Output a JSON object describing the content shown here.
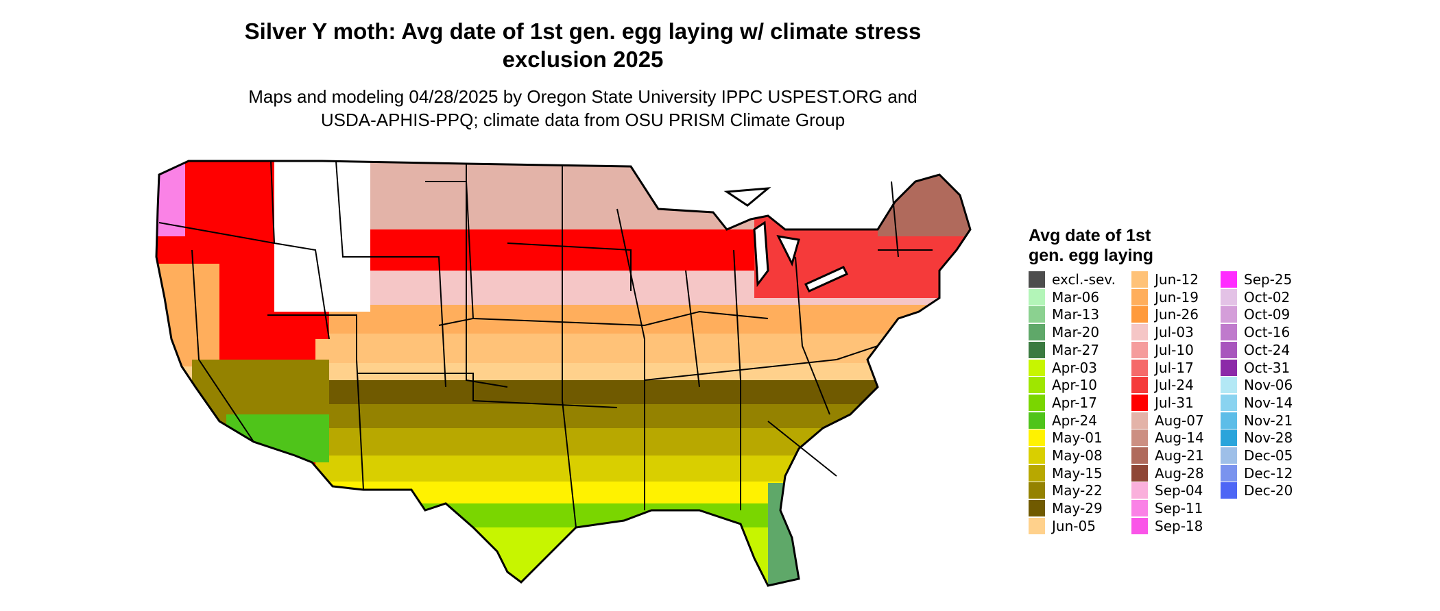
{
  "title_line1": "Silver Y moth: Avg date of 1st gen. egg laying w/ climate stress",
  "title_line2": "exclusion 2025",
  "subtitle_line1": "Maps and modeling 04/28/2025 by Oregon State University IPPC USPEST.ORG and",
  "subtitle_line2": "USDA-APHIS-PPQ; climate data from OSU PRISM Climate Group",
  "legend": {
    "title_line1": "Avg date of 1st",
    "title_line2": "gen. egg laying",
    "items": [
      {
        "label": "excl.-sev.",
        "color": "#4d4d4d"
      },
      {
        "label": "Mar-06",
        "color": "#b3f5b8"
      },
      {
        "label": "Mar-13",
        "color": "#8bd190"
      },
      {
        "label": "Mar-20",
        "color": "#5fa869"
      },
      {
        "label": "Mar-27",
        "color": "#3a7a40"
      },
      {
        "label": "Apr-03",
        "color": "#c7f500"
      },
      {
        "label": "Apr-10",
        "color": "#9fe600"
      },
      {
        "label": "Apr-17",
        "color": "#7ad600"
      },
      {
        "label": "Apr-24",
        "color": "#4fc41a"
      },
      {
        "label": "May-01",
        "color": "#fff200"
      },
      {
        "label": "May-08",
        "color": "#d9cf00"
      },
      {
        "label": "May-15",
        "color": "#b8a800"
      },
      {
        "label": "May-22",
        "color": "#948200"
      },
      {
        "label": "May-29",
        "color": "#705a00"
      },
      {
        "label": "Jun-05",
        "color": "#ffd18c"
      },
      {
        "label": "Jun-12",
        "color": "#ffc278"
      },
      {
        "label": "Jun-19",
        "color": "#ffae5c"
      },
      {
        "label": "Jun-26",
        "color": "#ff9a3c"
      },
      {
        "label": "Jul-03",
        "color": "#f5c6c6"
      },
      {
        "label": "Jul-10",
        "color": "#f59c9c"
      },
      {
        "label": "Jul-17",
        "color": "#f56a6a"
      },
      {
        "label": "Jul-24",
        "color": "#f53a3a"
      },
      {
        "label": "Jul-31",
        "color": "#ff0000"
      },
      {
        "label": "Aug-07",
        "color": "#e3b3a8"
      },
      {
        "label": "Aug-14",
        "color": "#cc8f82"
      },
      {
        "label": "Aug-21",
        "color": "#b06a5c"
      },
      {
        "label": "Aug-28",
        "color": "#8f4636"
      },
      {
        "label": "Sep-04",
        "color": "#fab0dc"
      },
      {
        "label": "Sep-11",
        "color": "#fa82e6"
      },
      {
        "label": "Sep-18",
        "color": "#fa55e8"
      },
      {
        "label": "Sep-25",
        "color": "#ff2bff"
      },
      {
        "label": "Oct-02",
        "color": "#e3c2e6"
      },
      {
        "label": "Oct-09",
        "color": "#d49ed9"
      },
      {
        "label": "Oct-16",
        "color": "#bf7acc"
      },
      {
        "label": "Oct-24",
        "color": "#a855bd"
      },
      {
        "label": "Oct-31",
        "color": "#8c2aa8"
      },
      {
        "label": "Nov-06",
        "color": "#b3e8f5"
      },
      {
        "label": "Nov-14",
        "color": "#8ad3f0"
      },
      {
        "label": "Nov-21",
        "color": "#5cbde8"
      },
      {
        "label": "Nov-28",
        "color": "#2aa4db"
      },
      {
        "label": "Dec-05",
        "color": "#9ebfe8"
      },
      {
        "label": "Dec-12",
        "color": "#7a93ee"
      },
      {
        "label": "Dec-20",
        "color": "#4d66f5"
      }
    ]
  },
  "map": {
    "outline_color": "#000000",
    "excluded_color": "#ffffff"
  }
}
